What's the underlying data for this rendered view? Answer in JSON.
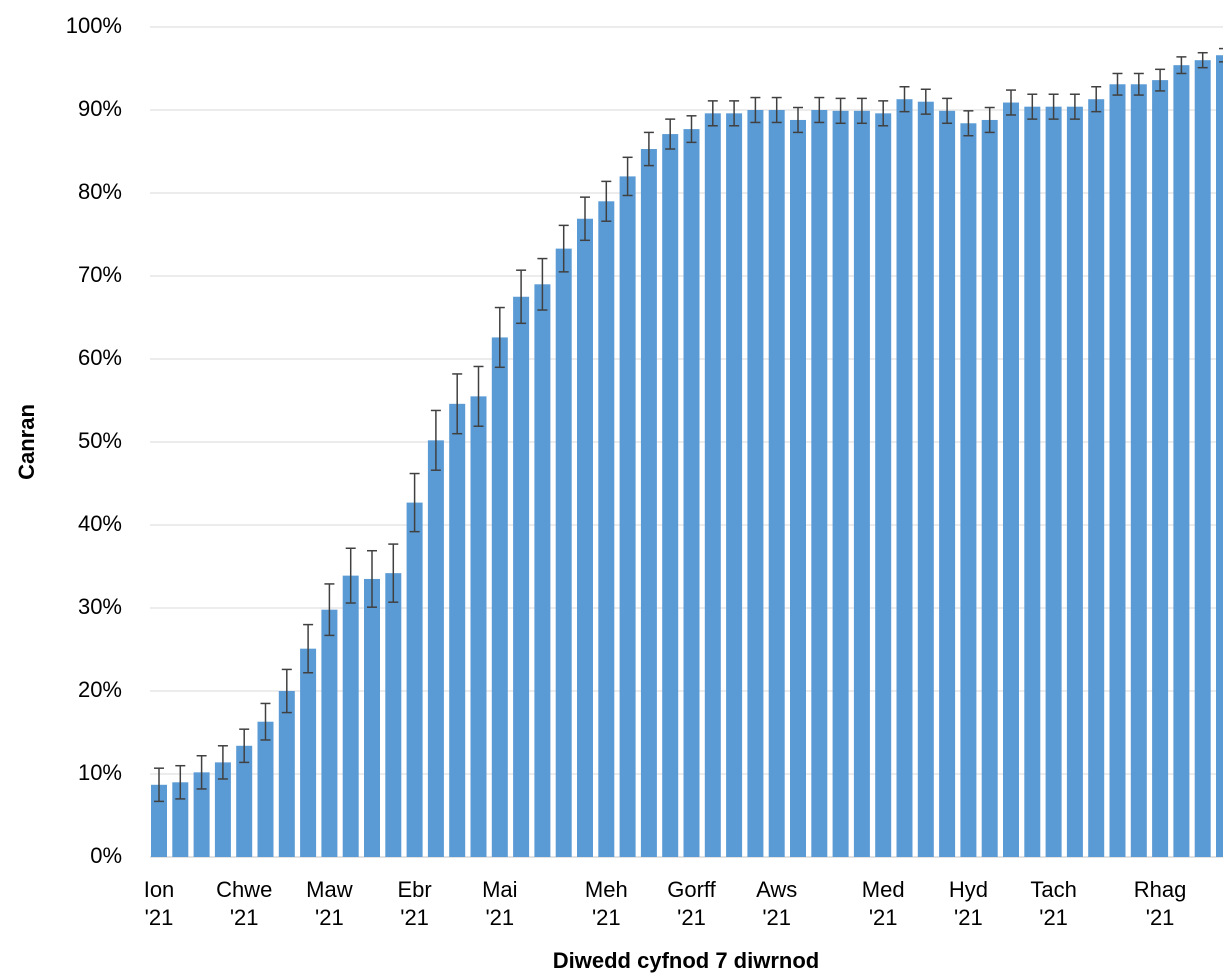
{
  "chart_data": {
    "type": "bar",
    "y_label": "Canran",
    "x_label": "Diwedd cyfnod 7 diwrnod",
    "color": "#5b9bd5",
    "grid": true,
    "categories": [
      "Ion\n'21",
      null,
      null,
      null,
      "Chwe\n'21",
      null,
      null,
      null,
      "Maw\n'21",
      null,
      null,
      null,
      "Ebr\n'21",
      null,
      null,
      null,
      "Mai\n'21",
      null,
      null,
      null,
      null,
      "Meh\n'21",
      null,
      null,
      null,
      "Gorff\n'21",
      null,
      null,
      null,
      "Aws\n'21",
      null,
      null,
      null,
      null,
      "Med\n'21",
      null,
      null,
      null,
      "Hyd\n'21",
      null,
      null,
      null,
      "Tach\n'21",
      null,
      null,
      null,
      null,
      "Rhag\n'21",
      null,
      null,
      null
    ],
    "values": [
      8.7,
      9.0,
      10.2,
      11.4,
      13.4,
      16.3,
      20.0,
      25.1,
      29.8,
      33.9,
      33.5,
      34.2,
      42.7,
      50.2,
      54.6,
      55.5,
      62.6,
      67.5,
      69.0,
      73.3,
      76.9,
      79.0,
      82.0,
      85.3,
      87.1,
      87.7,
      89.6,
      89.6,
      90.0,
      90.0,
      88.8,
      90.0,
      89.9,
      89.9,
      89.6,
      91.3,
      91.0,
      89.9,
      88.4,
      88.8,
      90.9,
      90.4,
      90.4,
      90.4,
      91.3,
      93.1,
      93.1,
      93.6,
      95.4,
      96.0,
      96.6
    ],
    "errors": [
      2.0,
      2.0,
      2.0,
      2.0,
      2.0,
      2.2,
      2.6,
      2.9,
      3.1,
      3.3,
      3.4,
      3.5,
      3.5,
      3.6,
      3.6,
      3.6,
      3.6,
      3.2,
      3.1,
      2.8,
      2.6,
      2.4,
      2.3,
      2.0,
      1.8,
      1.6,
      1.5,
      1.5,
      1.5,
      1.5,
      1.5,
      1.5,
      1.5,
      1.5,
      1.5,
      1.5,
      1.5,
      1.5,
      1.5,
      1.5,
      1.5,
      1.5,
      1.5,
      1.5,
      1.5,
      1.3,
      1.3,
      1.3,
      1.0,
      0.9,
      0.8
    ],
    "ylim": [
      0,
      100
    ],
    "yticks": [
      {
        "value": 0,
        "label": "0%"
      },
      {
        "value": 10,
        "label": "10%"
      },
      {
        "value": 20,
        "label": "20%"
      },
      {
        "value": 30,
        "label": "30%"
      },
      {
        "value": 40,
        "label": "40%"
      },
      {
        "value": 50,
        "label": "50%"
      },
      {
        "value": 60,
        "label": "60%"
      },
      {
        "value": 70,
        "label": "70%"
      },
      {
        "value": 80,
        "label": "80%"
      },
      {
        "value": 90,
        "label": "90%"
      },
      {
        "value": 100,
        "label": "100%"
      }
    ]
  }
}
